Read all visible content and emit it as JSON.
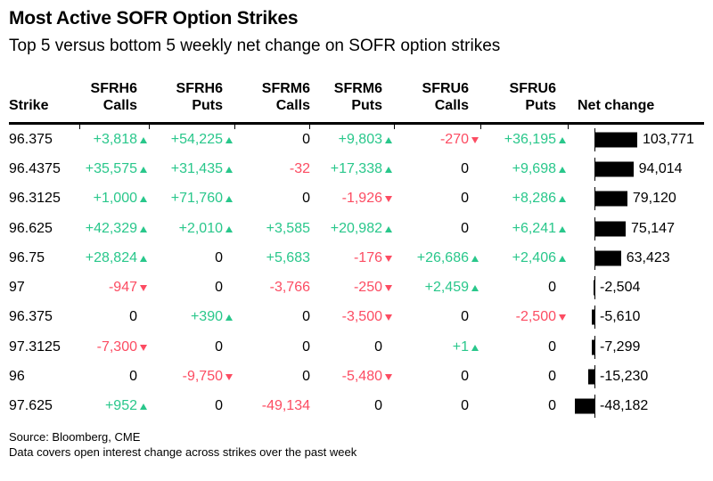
{
  "title": "Most Active SOFR Option Strikes",
  "subtitle": "Top 5 versus bottom 5 weekly net change on SOFR option strikes",
  "source": {
    "line1": "Source: Bloomberg, CME",
    "line2": "Data covers open interest change across strikes over the past week"
  },
  "colors": {
    "up": "#29C78B",
    "down": "#FC4C62",
    "bar": "#000000",
    "text": "#000000"
  },
  "columns": [
    {
      "ticker": "",
      "label": "Strike"
    },
    {
      "ticker": "SFRH6",
      "label": "Calls"
    },
    {
      "ticker": "SFRH6",
      "label": "Puts"
    },
    {
      "ticker": "SFRM6",
      "label": "Calls"
    },
    {
      "ticker": "SFRM6",
      "label": "Puts"
    },
    {
      "ticker": "SFRU6",
      "label": "Calls"
    },
    {
      "ticker": "SFRU6",
      "label": "Puts"
    },
    {
      "ticker": "",
      "label": "Net change"
    }
  ],
  "chart_data": {
    "type": "table",
    "title": "Most Active SOFR Option Strikes",
    "subtitle": "Top 5 versus bottom 5 weekly net change on SOFR option strikes",
    "column_headers": [
      "Strike",
      "SFRH6 Calls",
      "SFRH6 Puts",
      "SFRM6 Calls",
      "SFRM6 Puts",
      "SFRU6 Calls",
      "SFRU6 Puts",
      "Net change"
    ],
    "net_change_bar": {
      "type": "bar",
      "orientation": "horizontal",
      "zero_axis": true,
      "max_abs_value": 103771,
      "bar_color": "#000000"
    },
    "rows": [
      {
        "strike": "96.375",
        "values": [
          3818,
          54225,
          0,
          9803,
          -270,
          36195
        ],
        "labels": [
          "+3,818",
          "+54,225",
          "0",
          "+9,803",
          "-270",
          "+36,195"
        ],
        "arrows": [
          true,
          true,
          false,
          true,
          true,
          true
        ],
        "net": 103771,
        "net_label": "103,771"
      },
      {
        "strike": "96.4375",
        "values": [
          35575,
          31435,
          -32,
          17338,
          0,
          9698
        ],
        "labels": [
          "+35,575",
          "+31,435",
          "-32",
          "+17,338",
          "0",
          "+9,698"
        ],
        "arrows": [
          true,
          true,
          false,
          true,
          false,
          true
        ],
        "net": 94014,
        "net_label": "94,014"
      },
      {
        "strike": "96.3125",
        "values": [
          1000,
          71760,
          0,
          -1926,
          0,
          8286
        ],
        "labels": [
          "+1,000",
          "+71,760",
          "0",
          "-1,926",
          "0",
          "+8,286"
        ],
        "arrows": [
          true,
          true,
          false,
          true,
          false,
          true
        ],
        "net": 79120,
        "net_label": "79,120"
      },
      {
        "strike": "96.625",
        "values": [
          42329,
          2010,
          3585,
          20982,
          0,
          6241
        ],
        "labels": [
          "+42,329",
          "+2,010",
          "+3,585",
          "+20,982",
          "0",
          "+6,241"
        ],
        "arrows": [
          true,
          true,
          false,
          true,
          false,
          true
        ],
        "net": 75147,
        "net_label": "75,147"
      },
      {
        "strike": "96.75",
        "values": [
          28824,
          0,
          5683,
          -176,
          26686,
          2406
        ],
        "labels": [
          "+28,824",
          "0",
          "+5,683",
          "-176",
          "+26,686",
          "+2,406"
        ],
        "arrows": [
          true,
          false,
          false,
          true,
          true,
          true
        ],
        "net": 63423,
        "net_label": "63,423"
      },
      {
        "strike": "97",
        "values": [
          -947,
          0,
          -3766,
          -250,
          2459,
          0
        ],
        "labels": [
          "-947",
          "0",
          "-3,766",
          "-250",
          "+2,459",
          "0"
        ],
        "arrows": [
          true,
          false,
          false,
          true,
          true,
          false
        ],
        "net": -2504,
        "net_label": "-2,504"
      },
      {
        "strike": "96.375",
        "values": [
          0,
          390,
          0,
          -3500,
          0,
          -2500
        ],
        "labels": [
          "0",
          "+390",
          "0",
          "-3,500",
          "0",
          "-2,500"
        ],
        "arrows": [
          false,
          true,
          false,
          true,
          false,
          true
        ],
        "net": -5610,
        "net_label": "-5,610"
      },
      {
        "strike": "97.3125",
        "values": [
          -7300,
          0,
          0,
          0,
          1,
          0
        ],
        "labels": [
          "-7,300",
          "0",
          "0",
          "0",
          "+1",
          "0"
        ],
        "arrows": [
          true,
          false,
          false,
          false,
          true,
          false
        ],
        "net": -7299,
        "net_label": "-7,299"
      },
      {
        "strike": "96",
        "values": [
          0,
          -9750,
          0,
          -5480,
          0,
          0
        ],
        "labels": [
          "0",
          "-9,750",
          "0",
          "-5,480",
          "0",
          "0"
        ],
        "arrows": [
          false,
          true,
          false,
          true,
          false,
          false
        ],
        "net": -15230,
        "net_label": "-15,230"
      },
      {
        "strike": "97.625",
        "values": [
          952,
          0,
          -49134,
          0,
          0,
          0
        ],
        "labels": [
          "+952",
          "0",
          "-49,134",
          "0",
          "0",
          "0"
        ],
        "arrows": [
          true,
          false,
          false,
          false,
          false,
          false
        ],
        "net": -48182,
        "net_label": "-48,182"
      }
    ]
  }
}
